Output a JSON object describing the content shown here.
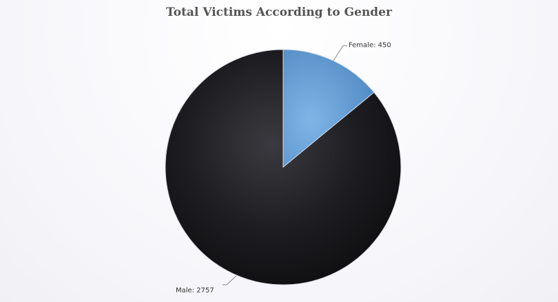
{
  "chart_data": {
    "type": "pie",
    "title": "Total Victims According to Gender",
    "slices": [
      {
        "label": "Female",
        "value": 450,
        "color": "#6fa8dc",
        "display": "Female: 450"
      },
      {
        "label": "Male",
        "value": 2757,
        "color": "#1a1a1d",
        "display": "Male: 2757"
      }
    ],
    "start": "12 o'clock",
    "direction": "clockwise",
    "legend": "none"
  }
}
